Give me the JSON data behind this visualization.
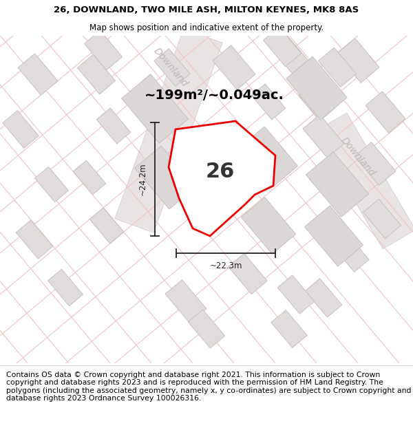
{
  "title_line1": "26, DOWNLAND, TWO MILE ASH, MILTON KEYNES, MK8 8AS",
  "title_line2": "Map shows position and indicative extent of the property.",
  "area_text": "~199m²/~0.049ac.",
  "label_number": "26",
  "dim_height": "~24.2m",
  "dim_width": "~22.3m",
  "footer_text": "Contains OS data © Crown copyright and database right 2021. This information is subject to Crown copyright and database rights 2023 and is reproduced with the permission of HM Land Registry. The polygons (including the associated geometry, namely x, y co-ordinates) are subject to Crown copyright and database rights 2023 Ordnance Survey 100026316.",
  "map_bg": "#f2f0f0",
  "road_color": "#f0c8c8",
  "building_fill": "#e0dcdc",
  "building_stroke": "#c8c0c0",
  "road_fill": "#e8e4e4",
  "road_stroke": "#d0c8c8",
  "red_plot_color": "#ee0000",
  "plot_fill": "#ffffff",
  "street_label_color": "#c0b8b8",
  "dim_line_color": "#222222",
  "title_fontsize": 9.5,
  "subtitle_fontsize": 8.5,
  "area_fontsize": 14,
  "number_fontsize": 22,
  "dim_fontsize": 8.5,
  "street_fontsize": 10,
  "footer_fontsize": 7.8
}
